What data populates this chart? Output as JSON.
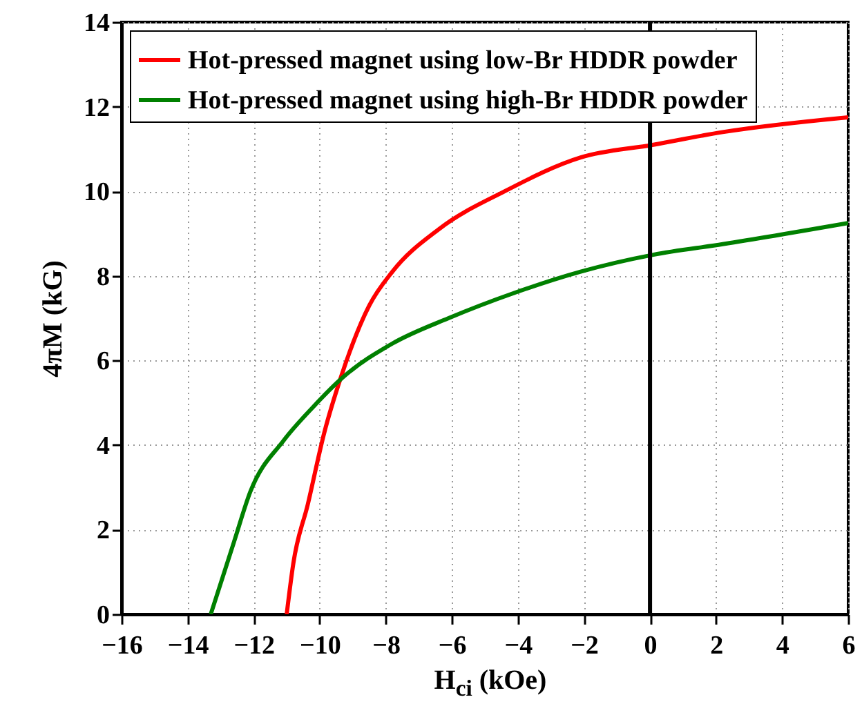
{
  "chart_data": {
    "type": "line",
    "xlabel": "H$_{ci}$ (kOe)",
    "ylabel": "4πM (kG)",
    "xlim": [
      -16,
      6
    ],
    "xticks": [
      -16,
      -14,
      -12,
      -10,
      -8,
      -6,
      -4,
      -2,
      0,
      2,
      4,
      6
    ],
    "ylim": [
      0,
      14
    ],
    "yticks": [
      0,
      2,
      4,
      6,
      8,
      10,
      12,
      14
    ],
    "grid": true,
    "legend": "top left",
    "line_style": "solid",
    "marker": "none",
    "ref_lines": [
      {
        "axis": "x",
        "value": 0,
        "color": "#000000"
      }
    ],
    "series": [
      {
        "name": "Hot-pressed magnet using low-Br HDDR powder",
        "color": "#ff0000",
        "x": [
          -11.0,
          -10.8,
          -10.36,
          -9.86,
          -9.36,
          -8.5,
          -7.8,
          -6.4,
          -4.4,
          -2.1,
          0.1,
          2.2,
          6.0
        ],
        "values": [
          0,
          1.2,
          2.6,
          4.3,
          5.6,
          7.3,
          8.1,
          9.1,
          10.0,
          10.8,
          11.1,
          11.4,
          11.75
        ]
      },
      {
        "name": "Hot-pressed magnet using high-Br HDDR powder",
        "color": "#008000",
        "x": [
          -13.3,
          -12.6,
          -12.1,
          -11.1,
          -10.2,
          -9.3,
          -7.8,
          -6.1,
          -4.1,
          -2.1,
          0.1,
          2.2,
          6.0
        ],
        "values": [
          0,
          1.7,
          2.9,
          4.1,
          4.9,
          5.6,
          6.4,
          7.0,
          7.6,
          8.1,
          8.5,
          8.75,
          9.25
        ]
      }
    ]
  }
}
